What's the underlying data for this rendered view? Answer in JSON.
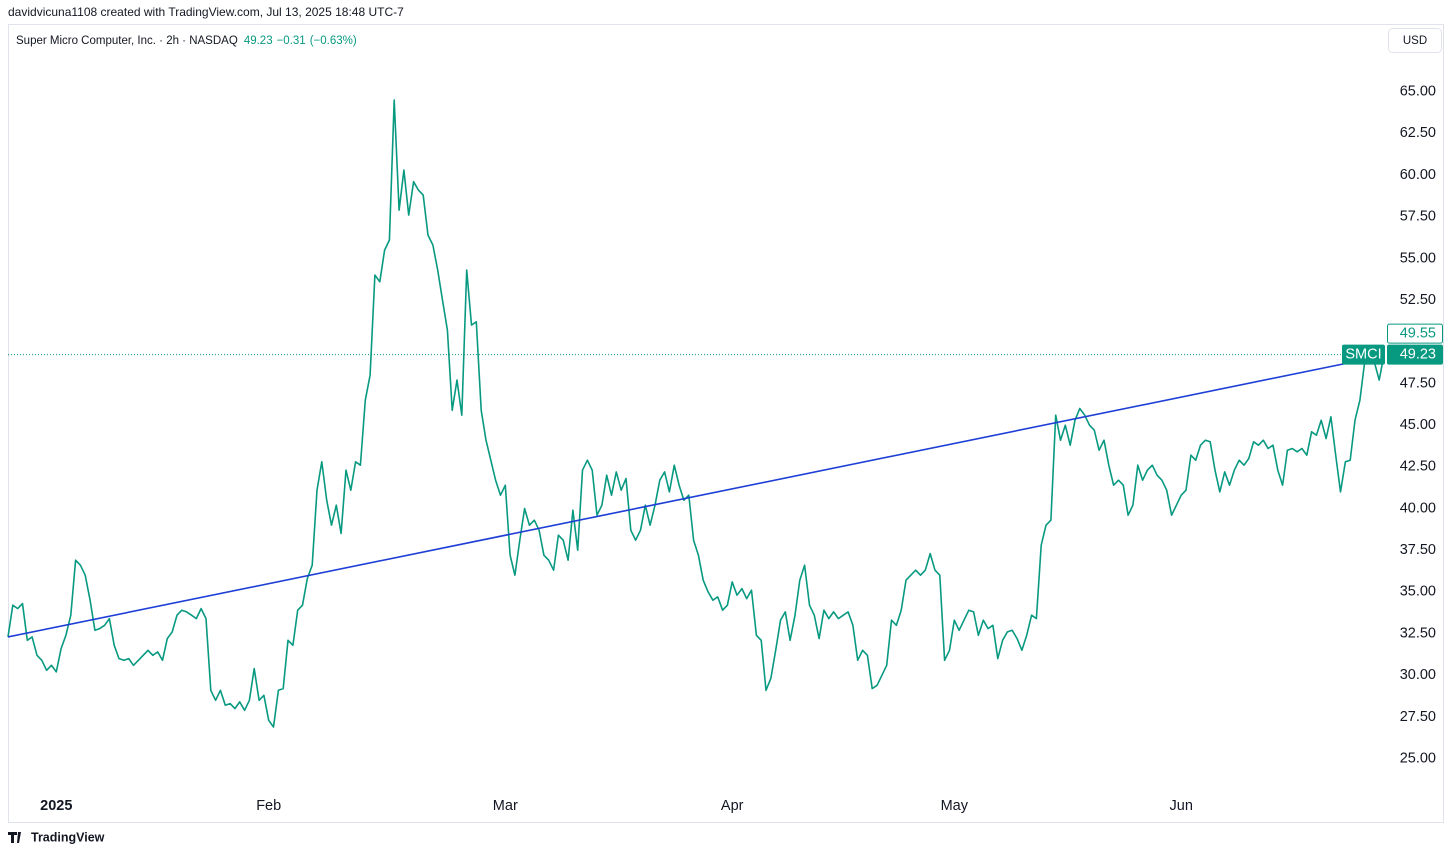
{
  "header": {
    "credit": "davidvicuna1108 created with TradingView.com, Jul 13, 2025 18:48 UTC-7",
    "currency": "USD",
    "footer": "TradingView"
  },
  "chart_data": {
    "type": "line",
    "legend": {
      "symbol": "Super Micro Computer, Inc. · 2h · NASDAQ",
      "price": "49.23",
      "change": "−0.31",
      "change_pct": "(−0.63%)"
    },
    "categories": [
      null,
      null,
      null,
      null,
      null,
      null,
      null,
      null,
      null,
      null,
      "2025",
      null,
      null,
      null,
      null,
      null,
      null,
      null,
      null,
      null,
      null,
      null,
      null,
      null,
      null,
      null,
      null,
      null,
      null,
      null,
      null,
      null,
      null,
      null,
      null,
      null,
      null,
      null,
      null,
      null,
      null,
      null,
      null,
      null,
      null,
      null,
      null,
      null,
      null,
      null,
      null,
      null,
      null,
      null,
      "Feb",
      null,
      null,
      null,
      null,
      null,
      null,
      null,
      null,
      null,
      null,
      null,
      null,
      null,
      null,
      null,
      null,
      null,
      null,
      null,
      null,
      null,
      null,
      null,
      null,
      null,
      null,
      null,
      null,
      null,
      null,
      null,
      null,
      null,
      null,
      null,
      null,
      null,
      null,
      null,
      null,
      null,
      null,
      null,
      null,
      null,
      null,
      null,
      null,
      "Mar",
      null,
      null,
      null,
      null,
      null,
      null,
      null,
      null,
      null,
      null,
      null,
      null,
      null,
      null,
      null,
      null,
      null,
      null,
      null,
      null,
      null,
      null,
      null,
      null,
      null,
      null,
      null,
      null,
      null,
      null,
      null,
      null,
      null,
      null,
      null,
      null,
      null,
      null,
      null,
      null,
      null,
      null,
      null,
      null,
      null,
      null,
      "Apr",
      null,
      null,
      null,
      null,
      null,
      null,
      null,
      null,
      null,
      null,
      null,
      null,
      null,
      null,
      null,
      null,
      null,
      null,
      null,
      null,
      null,
      null,
      null,
      null,
      null,
      null,
      null,
      null,
      null,
      null,
      null,
      null,
      null,
      null,
      null,
      null,
      null,
      null,
      null,
      null,
      null,
      null,
      null,
      null,
      null,
      "May",
      null,
      null,
      null,
      null,
      null,
      null,
      null,
      null,
      null,
      null,
      null,
      null,
      null,
      null,
      null,
      null,
      null,
      null,
      null,
      null,
      null,
      null,
      null,
      null,
      null,
      null,
      null,
      null,
      null,
      null,
      null,
      null,
      null,
      null,
      null,
      null,
      null,
      null,
      null,
      null,
      null,
      null,
      null,
      null,
      null,
      null,
      "Jun",
      null,
      null,
      null,
      null,
      null,
      null,
      null,
      null,
      null,
      null,
      null,
      null,
      null,
      null,
      null,
      null,
      null,
      null,
      null,
      null,
      null,
      null,
      null,
      null,
      null,
      null,
      null,
      null,
      null,
      null,
      null,
      null,
      null,
      null,
      null,
      null,
      null,
      null,
      null,
      null,
      null,
      null
    ],
    "series": [
      {
        "name": "SMCI",
        "color": "#089981",
        "values": [
          32.3,
          34.2,
          34.0,
          34.3,
          32.1,
          32.3,
          31.2,
          30.9,
          30.3,
          30.6,
          30.2,
          31.6,
          32.4,
          33.6,
          36.9,
          36.6,
          36.0,
          34.5,
          32.7,
          32.8,
          33.0,
          33.4,
          31.8,
          31.0,
          30.9,
          31.0,
          30.6,
          30.9,
          31.2,
          31.5,
          31.2,
          31.4,
          30.9,
          32.2,
          32.6,
          33.6,
          33.9,
          33.8,
          33.6,
          33.4,
          34.0,
          33.4,
          29.1,
          28.5,
          29.1,
          28.2,
          28.3,
          28.0,
          28.4,
          27.9,
          28.5,
          30.4,
          28.5,
          28.8,
          27.3,
          26.9,
          29.1,
          29.2,
          32.1,
          31.8,
          33.9,
          34.2,
          35.8,
          36.6,
          41.1,
          42.8,
          40.5,
          39.0,
          40.2,
          38.5,
          42.3,
          41.1,
          42.8,
          42.6,
          46.5,
          48.0,
          54.0,
          53.6,
          55.5,
          56.1,
          64.5,
          57.9,
          60.3,
          57.6,
          59.6,
          59.1,
          58.8,
          56.4,
          55.8,
          54.3,
          52.5,
          50.7,
          45.9,
          47.7,
          45.6,
          54.3,
          51.0,
          51.2,
          45.9,
          44.1,
          42.9,
          41.7,
          40.8,
          41.4,
          37.2,
          36.0,
          38.1,
          40.0,
          39.0,
          39.3,
          38.7,
          37.2,
          36.9,
          36.3,
          38.4,
          38.1,
          36.9,
          39.9,
          37.5,
          42.3,
          42.9,
          42.3,
          39.6,
          40.2,
          42.0,
          40.8,
          42.2,
          41.1,
          41.8,
          38.7,
          38.1,
          38.7,
          40.2,
          39.0,
          40.2,
          41.7,
          42.2,
          41.0,
          42.6,
          41.4,
          40.5,
          40.8,
          38.1,
          37.2,
          35.7,
          35.0,
          34.5,
          34.7,
          33.9,
          34.2,
          35.6,
          34.8,
          35.2,
          34.6,
          35.1,
          32.4,
          32.1,
          29.1,
          29.8,
          31.5,
          33.3,
          33.8,
          32.1,
          33.6,
          35.7,
          36.6,
          34.2,
          33.6,
          32.2,
          33.9,
          33.4,
          33.8,
          33.4,
          33.6,
          33.8,
          33.0,
          30.9,
          31.5,
          31.2,
          29.2,
          29.4,
          30.0,
          30.6,
          33.3,
          33.0,
          33.9,
          35.7,
          36.0,
          36.3,
          36.0,
          36.3,
          37.3,
          36.3,
          36.0,
          30.9,
          31.5,
          33.3,
          32.7,
          33.3,
          33.9,
          33.8,
          32.4,
          33.3,
          32.8,
          33.0,
          31.0,
          32.1,
          32.6,
          32.7,
          32.2,
          31.5,
          32.4,
          33.6,
          33.4,
          37.8,
          39.0,
          39.3,
          45.6,
          44.1,
          45.0,
          43.8,
          45.3,
          46.0,
          45.6,
          45.0,
          44.7,
          43.5,
          44.1,
          42.6,
          41.4,
          41.7,
          41.4,
          39.6,
          40.2,
          42.6,
          41.7,
          42.3,
          42.6,
          42.0,
          41.7,
          41.1,
          39.6,
          40.2,
          40.8,
          41.1,
          43.2,
          42.9,
          43.8,
          44.1,
          44.0,
          42.3,
          41.0,
          42.2,
          41.4,
          42.3,
          42.9,
          42.6,
          43.0,
          44.0,
          43.8,
          44.1,
          43.6,
          43.8,
          42.3,
          41.4,
          43.5,
          43.6,
          43.4,
          43.6,
          43.2,
          44.6,
          44.4,
          45.3,
          44.2,
          45.5,
          43.2,
          41.0,
          42.8,
          42.9,
          45.3,
          46.5,
          48.8,
          49.2,
          48.8,
          47.7,
          49.23
        ]
      }
    ],
    "trend_line": {
      "color": "#1e3fd6",
      "values": [
        32.3,
        49.0
      ]
    },
    "last_price": 49.23,
    "prev_price": 49.55,
    "ylim": [
      21.2,
      69.0
    ],
    "yticks": [
      {
        "value": 25,
        "label": "25.00"
      },
      {
        "value": 27.5,
        "label": "27.50"
      },
      {
        "value": 30,
        "label": "30.00"
      },
      {
        "value": 32.5,
        "label": "32.50"
      },
      {
        "value": 35,
        "label": "35.00"
      },
      {
        "value": 37.5,
        "label": "37.50"
      },
      {
        "value": 40,
        "label": "40.00"
      },
      {
        "value": 42.5,
        "label": "42.50"
      },
      {
        "value": 45,
        "label": "45.00"
      },
      {
        "value": 47.5,
        "label": "47.50"
      },
      {
        "value": 52.5,
        "label": "52.50"
      },
      {
        "value": 55,
        "label": "55.00"
      },
      {
        "value": 57.5,
        "label": "57.50"
      },
      {
        "value": 60,
        "label": "60.00"
      },
      {
        "value": 62.5,
        "label": "62.50"
      },
      {
        "value": 65,
        "label": "65.00"
      }
    ],
    "grid": false
  }
}
